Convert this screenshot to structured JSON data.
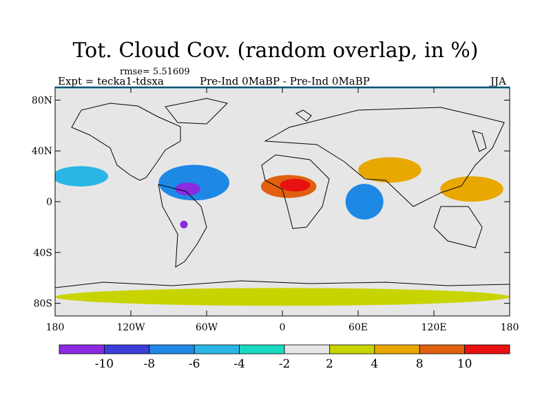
{
  "title": "Tot. Cloud Cov. (random overlap, in %)",
  "rmse_label": "rmse= 5.51609",
  "experiment_label": "Expt = tecka1-tdsxa",
  "difference_label": "Pre-Ind 0MaBP - Pre-Ind    0MaBP",
  "season_label": "JJA",
  "lat_ticks": [
    "80N",
    "40N",
    "0",
    "40S",
    "80S"
  ],
  "lon_ticks": [
    "180",
    "120W",
    "60W",
    "0",
    "60E",
    "120E",
    "180"
  ],
  "colorbar": {
    "labels": [
      "-10",
      "-8",
      "-6",
      "-4",
      "-2",
      "2",
      "4",
      "8",
      "10"
    ],
    "colors": [
      "#8a2be2",
      "#3b3fd8",
      "#1e88e5",
      "#29b6e6",
      "#19d9c0",
      "#e6e6e6",
      "#c8d400",
      "#e8a800",
      "#e06010",
      "#e81010"
    ]
  },
  "anomalies": [
    {
      "name": "africa-sahel-warm",
      "lon": 5,
      "lat": 12,
      "rx": 22,
      "ry": 9,
      "level": 8
    },
    {
      "name": "africa-sahel-core",
      "lon": 10,
      "lat": 13,
      "rx": 12,
      "ry": 5,
      "level": 9
    },
    {
      "name": "caribbean-decrease",
      "lon": -70,
      "lat": 15,
      "rx": 28,
      "ry": 14,
      "level": 2
    },
    {
      "name": "caribbean-core",
      "lon": -75,
      "lat": 10,
      "rx": 10,
      "ry": 5,
      "level": 0
    },
    {
      "name": "indian-ocean-decrease",
      "lon": 65,
      "lat": 0,
      "rx": 15,
      "ry": 14,
      "level": 2
    },
    {
      "name": "north-pacific-decrease",
      "lon": -160,
      "lat": 20,
      "rx": 22,
      "ry": 8,
      "level": 3
    },
    {
      "name": "asia-increase",
      "lon": 85,
      "lat": 25,
      "rx": 25,
      "ry": 10,
      "level": 7
    },
    {
      "name": "west-pacific-increase",
      "lon": 150,
      "lat": 10,
      "rx": 25,
      "ry": 10,
      "level": 7
    },
    {
      "name": "southern-ocean-band",
      "lon": 0,
      "lat": -75,
      "rx": 180,
      "ry": 7,
      "level": 6
    },
    {
      "name": "peru-spot",
      "lon": -78,
      "lat": -18,
      "rx": 3,
      "ry": 3,
      "level": 0
    }
  ]
}
